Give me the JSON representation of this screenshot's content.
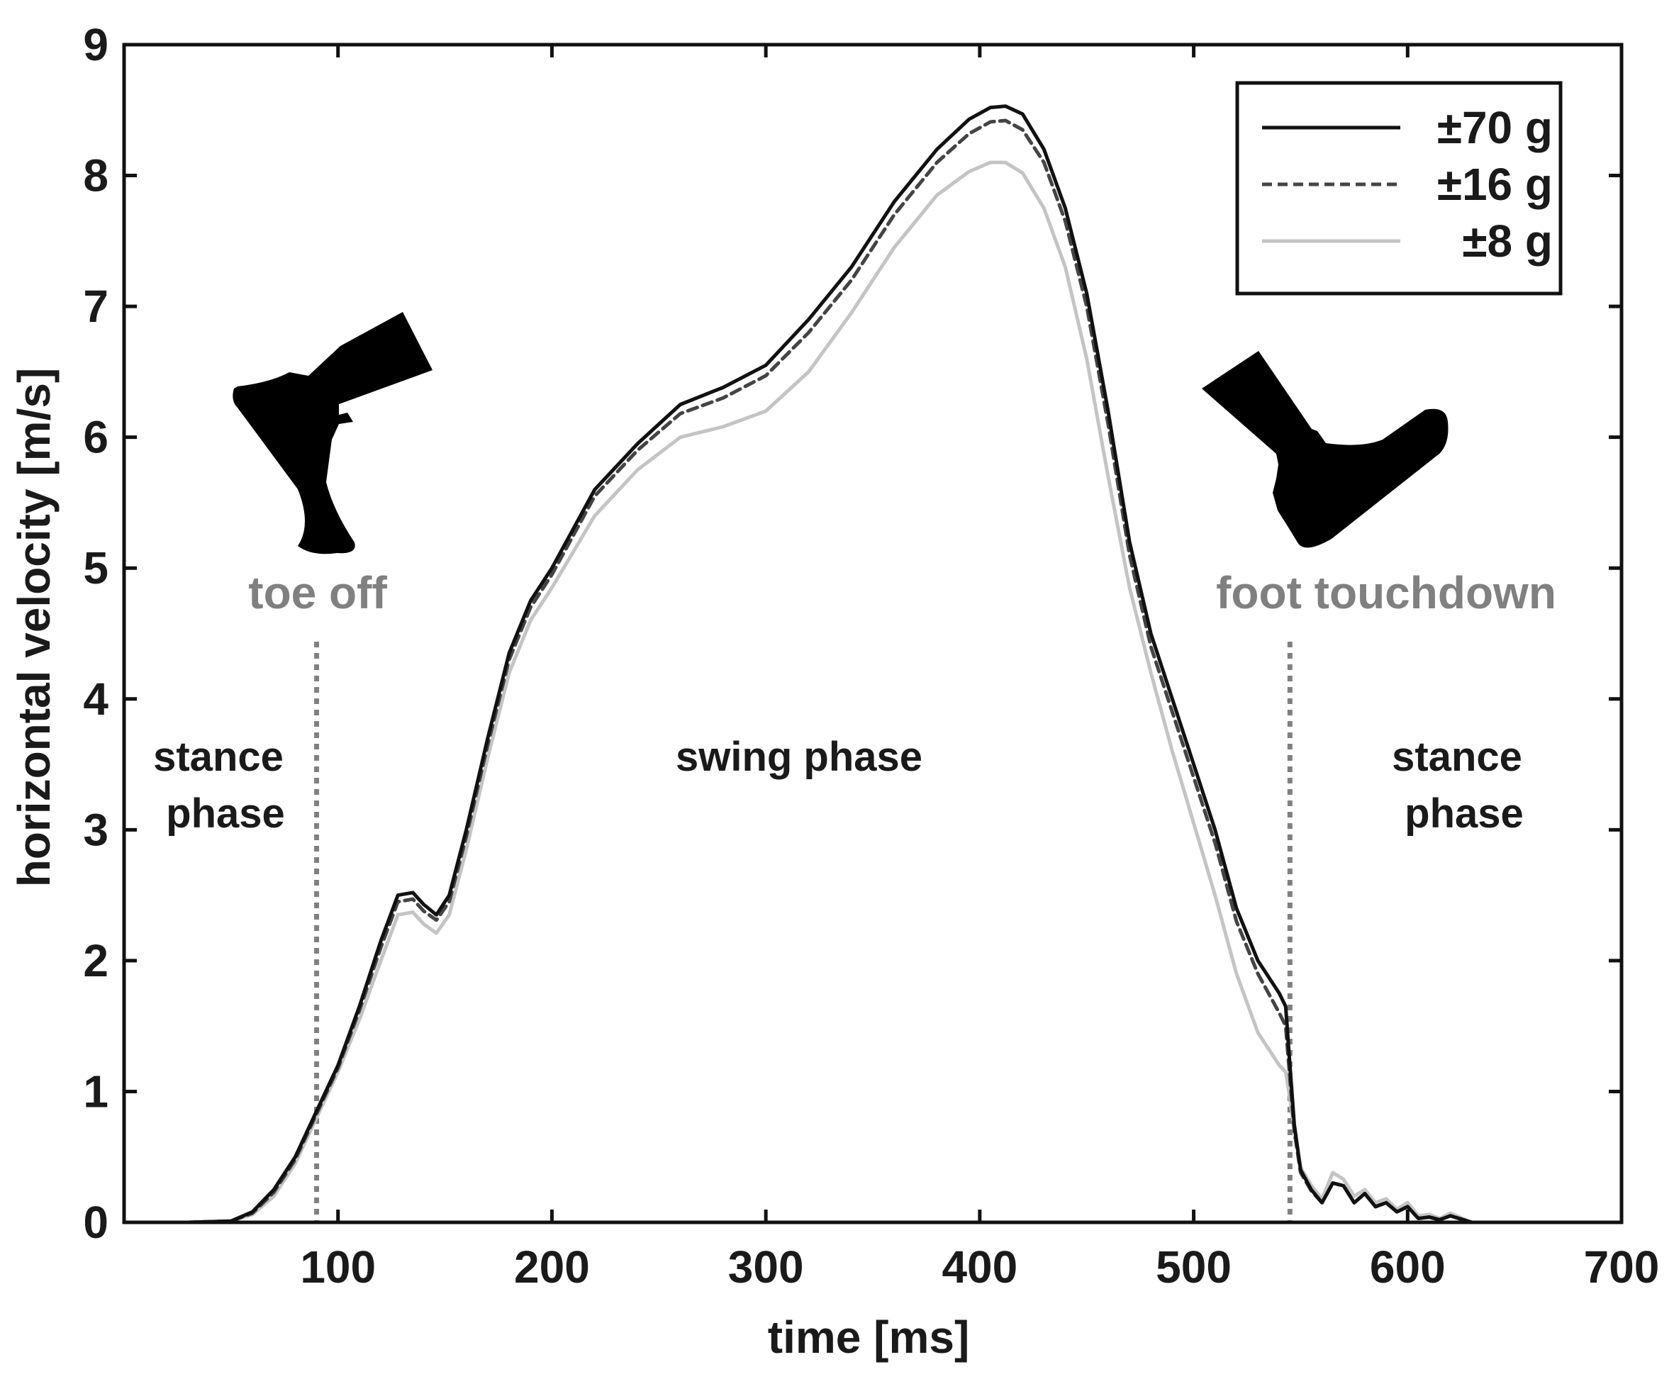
{
  "chart_data": {
    "type": "line",
    "title": "",
    "xlabel": "time [ms]",
    "ylabel": "horizontal velocity [m/s]",
    "xlim": [
      0,
      700
    ],
    "ylim": [
      0,
      9
    ],
    "xticks": [
      100,
      200,
      300,
      400,
      500,
      600,
      700
    ],
    "yticks": [
      0,
      1,
      2,
      3,
      4,
      5,
      6,
      7,
      8,
      9
    ],
    "grid": false,
    "legend_position": "top-right",
    "series": [
      {
        "name": "±70 g",
        "color": "#111111",
        "style": "solid",
        "x": [
          0,
          30,
          50,
          60,
          70,
          80,
          90,
          100,
          110,
          120,
          128,
          135,
          140,
          146,
          152,
          160,
          170,
          180,
          190,
          200,
          220,
          240,
          260,
          280,
          300,
          320,
          340,
          360,
          380,
          395,
          405,
          412,
          420,
          430,
          440,
          450,
          460,
          470,
          480,
          490,
          500,
          510,
          520,
          530,
          540,
          543,
          545,
          547,
          550,
          555,
          560,
          565,
          570,
          575,
          580,
          585,
          590,
          595,
          600,
          605,
          610,
          615,
          620,
          630,
          635
        ],
        "y": [
          0,
          0,
          0.01,
          0.08,
          0.25,
          0.5,
          0.85,
          1.2,
          1.65,
          2.15,
          2.5,
          2.52,
          2.43,
          2.35,
          2.5,
          3.0,
          3.7,
          4.35,
          4.75,
          5.0,
          5.6,
          5.95,
          6.25,
          6.38,
          6.55,
          6.9,
          7.3,
          7.8,
          8.2,
          8.43,
          8.52,
          8.53,
          8.47,
          8.2,
          7.75,
          7.1,
          6.2,
          5.2,
          4.5,
          4.0,
          3.5,
          3.0,
          2.4,
          2.0,
          1.75,
          1.65,
          1.2,
          0.75,
          0.4,
          0.25,
          0.15,
          0.3,
          0.28,
          0.15,
          0.22,
          0.12,
          0.15,
          0.08,
          0.12,
          0.03,
          0.04,
          0.02,
          0.05,
          0,
          0
        ]
      },
      {
        "name": "±16 g",
        "color": "#444444",
        "style": "dashed",
        "x": [
          0,
          30,
          50,
          60,
          70,
          80,
          90,
          100,
          110,
          120,
          128,
          135,
          140,
          146,
          152,
          160,
          170,
          180,
          190,
          200,
          220,
          240,
          260,
          280,
          300,
          320,
          340,
          360,
          380,
          395,
          405,
          412,
          420,
          430,
          440,
          450,
          460,
          470,
          480,
          490,
          500,
          510,
          520,
          530,
          540,
          543,
          545,
          547,
          550,
          555,
          560,
          565,
          570,
          575,
          580,
          585,
          590,
          595,
          600,
          605,
          610,
          615,
          620,
          630,
          635
        ],
        "y": [
          0,
          0,
          0.01,
          0.07,
          0.23,
          0.48,
          0.83,
          1.18,
          1.62,
          2.1,
          2.45,
          2.47,
          2.38,
          2.31,
          2.45,
          2.95,
          3.65,
          4.3,
          4.7,
          4.95,
          5.55,
          5.9,
          6.18,
          6.3,
          6.47,
          6.8,
          7.2,
          7.7,
          8.1,
          8.32,
          8.41,
          8.42,
          8.35,
          8.1,
          7.65,
          7.0,
          6.1,
          5.1,
          4.4,
          3.9,
          3.4,
          2.9,
          2.3,
          1.9,
          1.6,
          1.5,
          1.1,
          0.7,
          0.38,
          0.24,
          0.15,
          0.3,
          0.28,
          0.15,
          0.22,
          0.12,
          0.15,
          0.08,
          0.12,
          0.03,
          0.04,
          0.02,
          0.05,
          0,
          0
        ]
      },
      {
        "name": "±8 g",
        "color": "#c4c4c4",
        "style": "solid",
        "x": [
          0,
          30,
          50,
          60,
          70,
          80,
          90,
          100,
          110,
          120,
          128,
          135,
          140,
          146,
          152,
          160,
          170,
          180,
          190,
          200,
          220,
          240,
          260,
          280,
          300,
          320,
          340,
          360,
          380,
          395,
          405,
          412,
          420,
          430,
          440,
          450,
          460,
          470,
          480,
          490,
          500,
          510,
          520,
          530,
          540,
          543,
          545,
          547,
          550,
          555,
          560,
          565,
          570,
          575,
          580,
          585,
          590,
          595,
          600,
          605,
          610,
          615,
          620,
          630,
          635
        ],
        "y": [
          0,
          0,
          0.01,
          0.06,
          0.2,
          0.45,
          0.8,
          1.15,
          1.55,
          2.0,
          2.35,
          2.37,
          2.28,
          2.21,
          2.35,
          2.85,
          3.55,
          4.2,
          4.6,
          4.85,
          5.4,
          5.75,
          6.0,
          6.08,
          6.2,
          6.5,
          6.95,
          7.45,
          7.85,
          8.03,
          8.1,
          8.1,
          8.02,
          7.75,
          7.3,
          6.6,
          5.7,
          4.85,
          4.2,
          3.6,
          3.05,
          2.5,
          1.9,
          1.45,
          1.2,
          1.15,
          0.95,
          0.7,
          0.42,
          0.28,
          0.18,
          0.38,
          0.33,
          0.2,
          0.25,
          0.15,
          0.18,
          0.1,
          0.15,
          0.05,
          0.06,
          0.03,
          0.07,
          0,
          0
        ]
      }
    ],
    "event_lines": [
      {
        "x": 90,
        "label": "toe off"
      },
      {
        "x": 545,
        "label": "foot touchdown"
      }
    ],
    "annotations": {
      "stance_left": [
        "stance",
        "phase"
      ],
      "swing": "swing phase",
      "stance_right": [
        "stance",
        "phase"
      ]
    },
    "icons": {
      "toe_off": "foot-toe-off-icon",
      "touchdown": "foot-touchdown-icon"
    }
  }
}
